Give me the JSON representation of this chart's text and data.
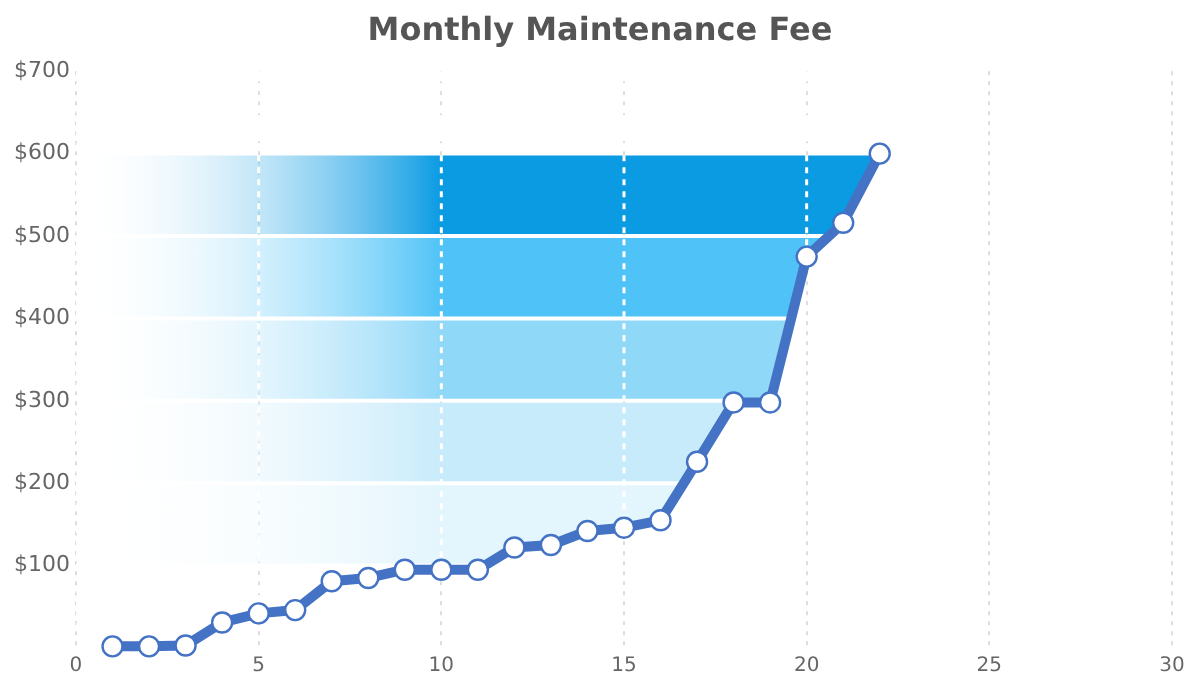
{
  "chart_data": {
    "type": "line",
    "title": "Monthly Maintenance Fee",
    "x": [
      1,
      2,
      3,
      4,
      5,
      6,
      7,
      8,
      9,
      10,
      11,
      12,
      13,
      14,
      15,
      16,
      17,
      18,
      19,
      20,
      21,
      22
    ],
    "series": [
      {
        "color": "#4472c4",
        "values": [
          2,
          2,
          3,
          31,
          42,
          46,
          81,
          85,
          95,
          95,
          95,
          122,
          125,
          142,
          146,
          155,
          226,
          298,
          298,
          475,
          516,
          600
        ]
      }
    ],
    "xlim": [
      0,
      30
    ],
    "xticks": [
      0,
      5,
      10,
      15,
      20,
      25,
      30
    ],
    "ylim": [
      0,
      700
    ],
    "yticks": [
      {
        "value": 100,
        "label": "$100"
      },
      {
        "value": 200,
        "label": "$200"
      },
      {
        "value": 300,
        "label": "$300"
      },
      {
        "value": 400,
        "label": "$400"
      },
      {
        "value": 500,
        "label": "$500"
      },
      {
        "value": 600,
        "label": "$600"
      },
      {
        "value": 700,
        "label": "$700"
      }
    ],
    "bands": [
      {
        "axis": "y",
        "from": 500,
        "to": 600,
        "color": "#0a9be3"
      },
      {
        "axis": "y",
        "from": 400,
        "to": 500,
        "color": "#4fc3f7"
      },
      {
        "axis": "y",
        "from": 300,
        "to": 400,
        "color": "#90d8f8"
      },
      {
        "axis": "y",
        "from": 200,
        "to": 300,
        "color": "#c8ebfb"
      },
      {
        "axis": "y",
        "from": 100,
        "to": 200,
        "color": "#e3f5fd"
      }
    ],
    "grid": "x",
    "legend": false,
    "marker": "circle",
    "line_style": "solid"
  }
}
